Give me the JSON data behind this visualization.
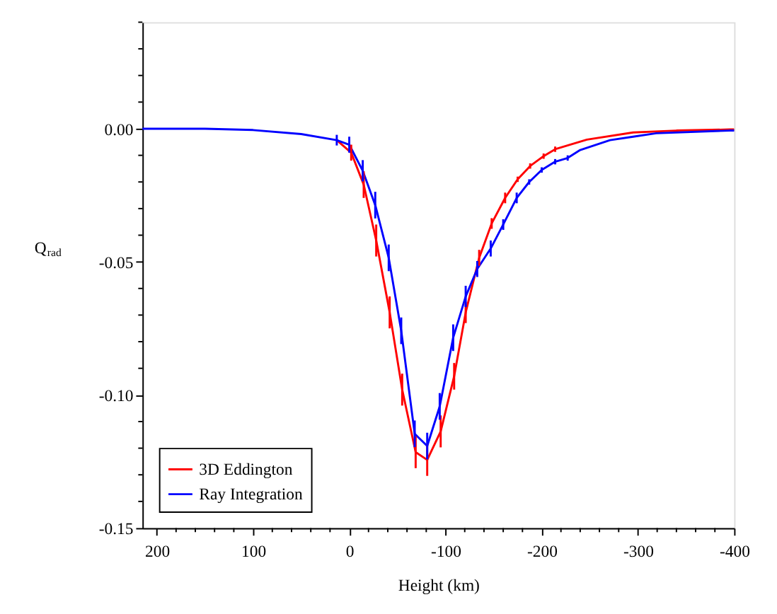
{
  "chart_data": {
    "type": "line",
    "xlabel": "Height (km)",
    "ylabel": "Q$_{rad}$",
    "xlim": [
      215,
      -400
    ],
    "ylim": [
      -0.15,
      0.04
    ],
    "xticks": [
      200,
      {
        "value": 180,
        "label": null
      },
      {
        "value": 160,
        "label": null
      },
      {
        "value": 140,
        "label": null
      },
      {
        "value": 120,
        "label": null
      },
      100,
      {
        "value": 80,
        "label": null
      },
      {
        "value": 60,
        "label": null
      },
      {
        "value": 40,
        "label": null
      },
      {
        "value": 20,
        "label": null
      },
      0,
      {
        "value": -20,
        "label": null
      },
      {
        "value": -40,
        "label": null
      },
      {
        "value": -60,
        "label": null
      },
      {
        "value": -80,
        "label": null
      },
      -100,
      {
        "value": -120,
        "label": null
      },
      {
        "value": -140,
        "label": null
      },
      {
        "value": -160,
        "label": null
      },
      {
        "value": -180,
        "label": null
      },
      -200,
      {
        "value": -220,
        "label": null
      },
      {
        "value": -240,
        "label": null
      },
      {
        "value": -260,
        "label": null
      },
      {
        "value": -280,
        "label": null
      },
      -300,
      {
        "value": -320,
        "label": null
      },
      {
        "value": -340,
        "label": null
      },
      {
        "value": -360,
        "label": null
      },
      {
        "value": -380,
        "label": null
      },
      -400
    ],
    "yticks": [
      {
        "value": -0.15,
        "label": "-0.15"
      },
      {
        "value": -0.14,
        "label": null
      },
      {
        "value": -0.13,
        "label": null
      },
      {
        "value": -0.12,
        "label": null
      },
      {
        "value": -0.11,
        "label": null
      },
      {
        "value": -0.1,
        "label": "-0.10"
      },
      {
        "value": -0.09,
        "label": null
      },
      {
        "value": -0.08,
        "label": null
      },
      {
        "value": -0.07,
        "label": null
      },
      {
        "value": -0.06,
        "label": null
      },
      {
        "value": -0.05,
        "label": "-0.05"
      },
      {
        "value": -0.04,
        "label": null
      },
      {
        "value": -0.03,
        "label": null
      },
      {
        "value": -0.02,
        "label": null
      },
      {
        "value": -0.01,
        "label": null
      },
      {
        "value": 0,
        "label": "0.00"
      },
      {
        "value": 0.01,
        "label": null
      },
      {
        "value": 0.02,
        "label": null
      },
      {
        "value": 0.03,
        "label": null
      },
      {
        "value": 0.04,
        "label": null
      }
    ],
    "grid": false,
    "legend": "bottom left",
    "marker": "none",
    "line_style": "solid",
    "series": [
      {
        "name": "3D Eddington",
        "color": "#ff0000",
        "x": [
          13,
          -2,
          -15,
          -28,
          -42,
          -55,
          -69,
          -81,
          -95,
          -109,
          -121,
          -135,
          -148,
          -162,
          -175,
          -188,
          -202,
          -214,
          -247,
          -295,
          -340,
          -395,
          -400
        ],
        "values": [
          -0.0043,
          -0.009,
          -0.021,
          -0.042,
          -0.069,
          -0.098,
          -0.1215,
          -0.1244,
          -0.1137,
          -0.093,
          -0.069,
          -0.0485,
          -0.0356,
          -0.026,
          -0.019,
          -0.014,
          -0.0103,
          -0.0077,
          -0.0041,
          -0.0014,
          -0.0007,
          -0.0003,
          -0.0003
        ],
        "errors": [
          null,
          0.003,
          0.005,
          0.006,
          0.006,
          0.006,
          0.006,
          0.006,
          0.006,
          0.005,
          0.004,
          0.003,
          0.002,
          0.002,
          0.001,
          0.001,
          0.001,
          0.001,
          null,
          null,
          null,
          null,
          null
        ]
      },
      {
        "name": "Ray Integration",
        "color": "#0000ff",
        "x": [
          215,
          200,
          150,
          100,
          50,
          13,
          0,
          -14,
          -27,
          -41,
          -54,
          -68,
          -81,
          -94,
          -108,
          -121,
          -133,
          -147,
          -160,
          -174,
          -187,
          -200,
          -214,
          -227,
          -240,
          -271,
          -295,
          -319,
          -395,
          -400
        ],
        "values": [
          0,
          0,
          0,
          -0.0005,
          -0.002,
          -0.0043,
          -0.006,
          -0.0158,
          -0.0287,
          -0.0485,
          -0.0759,
          -0.1146,
          -0.1192,
          -0.1043,
          -0.0785,
          -0.063,
          -0.0527,
          -0.045,
          -0.036,
          -0.026,
          -0.02,
          -0.0155,
          -0.0124,
          -0.011,
          -0.008,
          -0.0043,
          -0.003,
          -0.0017,
          -0.0007,
          -0.0007
        ],
        "errors": [
          null,
          null,
          null,
          null,
          null,
          0.002,
          0.003,
          0.004,
          0.005,
          0.005,
          0.005,
          0.005,
          0.005,
          0.005,
          0.005,
          0.004,
          0.003,
          0.003,
          0.002,
          0.002,
          0.001,
          0.001,
          0.001,
          0.001,
          null,
          null,
          null,
          null,
          null,
          null
        ]
      }
    ]
  }
}
